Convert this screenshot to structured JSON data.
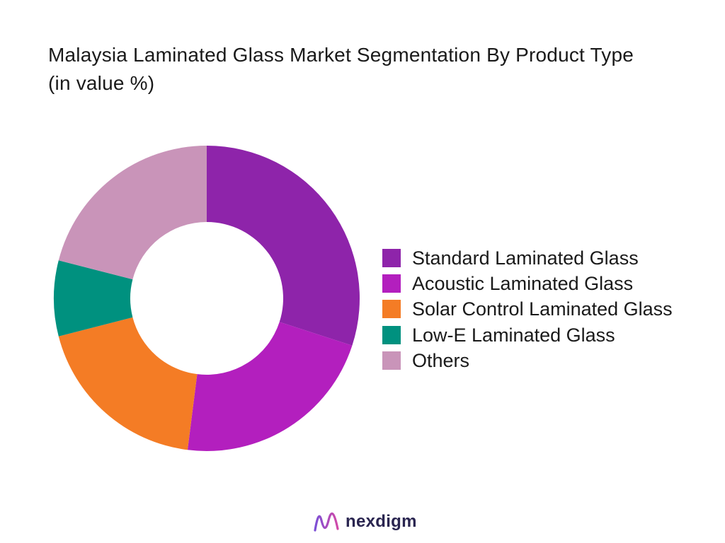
{
  "title": "Malaysia Laminated Glass Market Segmentation By Product Type (in value %)",
  "brand": "nexdigm",
  "chart_data": {
    "type": "pie",
    "donut": true,
    "legend_position": "right",
    "categories": [
      "Standard Laminated Glass",
      "Acoustic Laminated Glass",
      "Solar Control Laminated Glass",
      "Low-E Laminated Glass",
      "Others"
    ],
    "values": [
      30,
      22,
      19,
      8,
      21
    ],
    "colors": [
      "#8e24aa",
      "#b31fbe",
      "#f47c25",
      "#00917f",
      "#c994b9"
    ]
  }
}
